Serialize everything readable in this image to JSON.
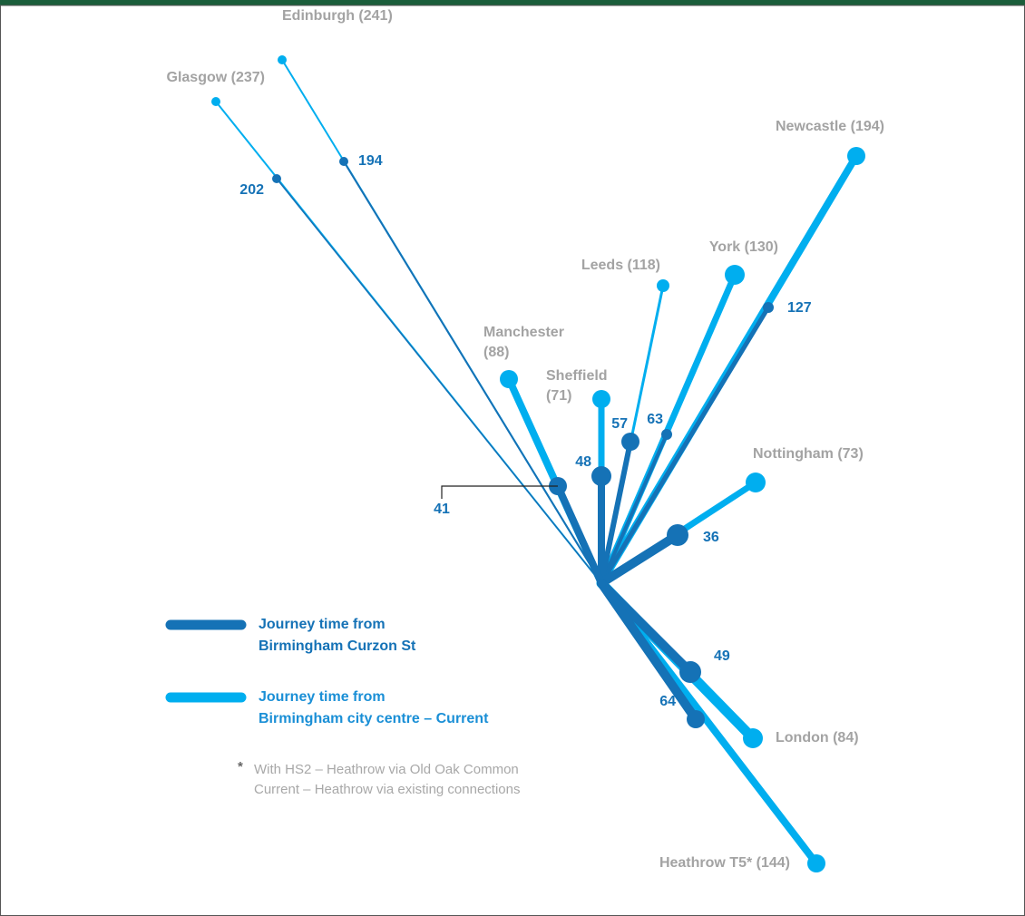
{
  "destinations": [
    {
      "label": [
        "Edinburgh (241)"
      ],
      "hs2": "194"
    },
    {
      "label": [
        "Glasgow (237)"
      ],
      "hs2": "202"
    },
    {
      "label": [
        "Newcastle (194)"
      ],
      "hs2": "127"
    },
    {
      "label": [
        "York (130)"
      ],
      "hs2": "63"
    },
    {
      "label": [
        "Leeds (118)"
      ],
      "hs2": "57"
    },
    {
      "label": [
        "Sheffield",
        "(71)"
      ],
      "hs2": "48"
    },
    {
      "label": [
        "Manchester",
        "(88)"
      ],
      "hs2": "41"
    },
    {
      "label": [
        "Nottingham (73)"
      ],
      "hs2": "36"
    },
    {
      "label": [
        "London (84)"
      ],
      "hs2": "49"
    },
    {
      "label": [
        "Heathrow T5* (144)"
      ],
      "hs2": "64"
    }
  ],
  "legend": [
    {
      "lines": [
        "Journey time from",
        "Birmingham Curzon St"
      ]
    },
    {
      "lines": [
        "Journey time from",
        "Birmingham city centre – Current"
      ]
    }
  ],
  "footnote": {
    "marker": "*",
    "lines": [
      "With HS2 – Heathrow via Old Oak Common",
      "Current – Heathrow via existing connections"
    ]
  }
}
